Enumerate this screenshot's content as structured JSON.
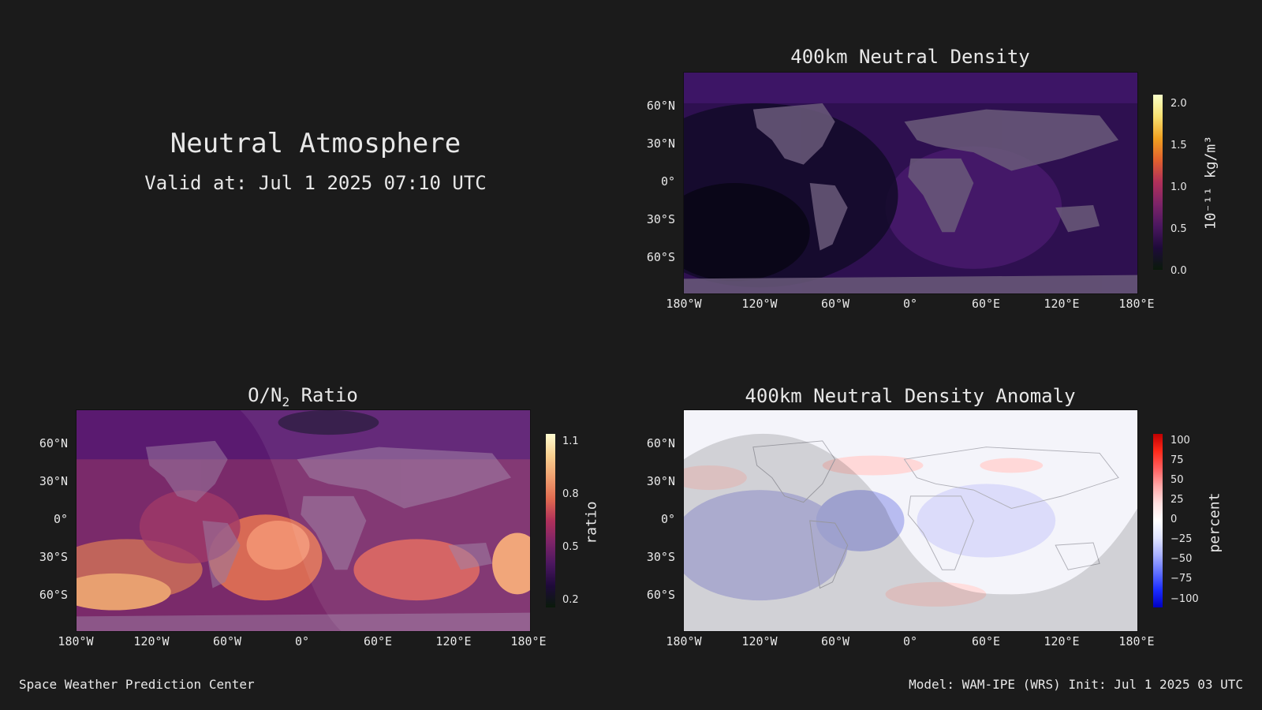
{
  "header": {
    "title": "Neutral Atmosphere",
    "valid": "Valid at: Jul 1 2025 07:10 UTC"
  },
  "axes": {
    "lat_labels": [
      "60°N",
      "30°N",
      "0°",
      "30°S",
      "60°S"
    ],
    "lon_labels": [
      "180°W",
      "120°W",
      "60°W",
      "0°",
      "60°E",
      "120°E",
      "180°E"
    ]
  },
  "panels": {
    "density": {
      "title": "400km Neutral Density",
      "unit": "10⁻¹¹ kg/m³",
      "ticks": [
        "2.0",
        "1.5",
        "1.0",
        "0.5",
        "0.0"
      ],
      "colors": [
        "#0a1a0a",
        "#1e0a3a",
        "#4b1760",
        "#7d2468",
        "#b0305a",
        "#e0602e",
        "#f0a020",
        "#f8e070",
        "#f8ffc8"
      ]
    },
    "on2": {
      "title_prefix": "O/N",
      "title_sub": "2",
      "title_suffix": " Ratio",
      "unit": "ratio",
      "ticks": [
        "1.1",
        "0.8",
        "0.5",
        "0.2"
      ],
      "colors": [
        "#0a1a0a",
        "#1e0a3a",
        "#4b1760",
        "#7d2468",
        "#b0305a",
        "#e06a50",
        "#f0a070",
        "#f8d090",
        "#fffbd0"
      ]
    },
    "anomaly": {
      "title": "400km Neutral Density Anomaly",
      "unit": "percent",
      "ticks": [
        "100",
        "75",
        "50",
        "25",
        "0",
        "−25",
        "−50",
        "−75",
        "−100"
      ],
      "colors": [
        "#0000c0",
        "#1a2cff",
        "#6070ff",
        "#a8b0ff",
        "#e0e4ff",
        "#ffffff",
        "#ffe0e0",
        "#ffa8a8",
        "#ff6060",
        "#ff2a1a",
        "#c00000"
      ]
    }
  },
  "footer": {
    "left": "Space Weather Prediction Center",
    "right": "Model: WAM-IPE (WRS) Init: Jul 1 2025 03 UTC"
  }
}
